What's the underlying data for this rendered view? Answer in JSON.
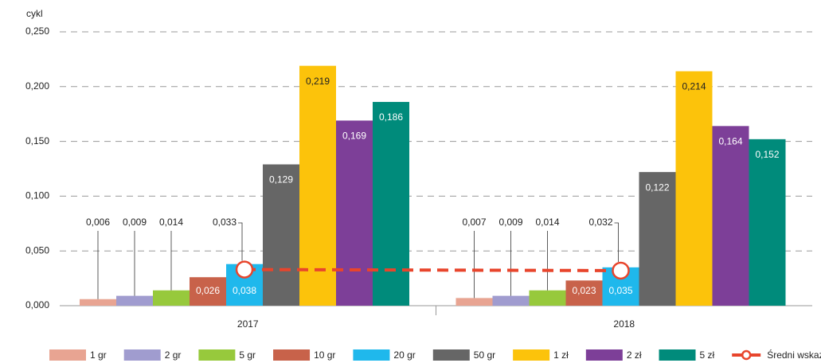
{
  "chart_data": {
    "type": "bar",
    "y_label": "cykl",
    "categories": [
      "2017",
      "2018"
    ],
    "ylim": [
      0,
      0.25
    ],
    "yticks": [
      {
        "value": 0,
        "label": "0,000"
      },
      {
        "value": 0.05,
        "label": "0,050"
      },
      {
        "value": 0.1,
        "label": "0,100"
      },
      {
        "value": 0.15,
        "label": "0,150"
      },
      {
        "value": 0.2,
        "label": "0,200"
      },
      {
        "value": 0.25,
        "label": "0,250"
      }
    ],
    "grid": true,
    "legend": "bottom",
    "series": [
      {
        "name": "1 gr",
        "color": "#e8a492",
        "values": [
          0.006,
          0.007
        ],
        "value_labels": [
          "0,006",
          "0,007"
        ]
      },
      {
        "name": "2 gr",
        "color": "#a09ccf",
        "values": [
          0.009,
          0.009
        ],
        "value_labels": [
          "0,009",
          "0,009"
        ]
      },
      {
        "name": "5 gr",
        "color": "#97c93c",
        "values": [
          0.014,
          0.014
        ],
        "value_labels": [
          "0,014",
          "0,014"
        ]
      },
      {
        "name": "10 gr",
        "color": "#c8624a",
        "values": [
          0.026,
          0.023
        ],
        "value_labels": [
          "0,026",
          "0,023"
        ]
      },
      {
        "name": "20 gr",
        "color": "#1fb8ec",
        "values": [
          0.038,
          0.035
        ],
        "value_labels": [
          "0,038",
          "0,035"
        ]
      },
      {
        "name": "50 gr",
        "color": "#666666",
        "values": [
          0.129,
          0.122
        ],
        "value_labels": [
          "0,129",
          "0,122"
        ]
      },
      {
        "name": "1 zł",
        "color": "#fcc30b",
        "values": [
          0.219,
          0.214
        ],
        "value_labels": [
          "0,219",
          "0,214"
        ]
      },
      {
        "name": "2 zł",
        "color": "#7d3f98",
        "values": [
          0.169,
          0.164
        ],
        "value_labels": [
          "0,169",
          "0,164"
        ]
      },
      {
        "name": "5 zł",
        "color": "#008b7b",
        "values": [
          0.186,
          0.152
        ],
        "value_labels": [
          "0,186",
          "0,152"
        ]
      },
      {
        "name": "Średni wskaźnik",
        "type": "line",
        "color": "#e8452c",
        "values": [
          0.033,
          0.032
        ],
        "value_labels": [
          "0,033",
          "0,032"
        ]
      }
    ]
  }
}
